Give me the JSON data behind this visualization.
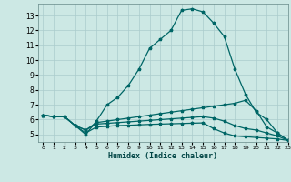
{
  "xlabel": "Humidex (Indice chaleur)",
  "bg_color": "#cce8e4",
  "grid_color": "#aacccc",
  "line_color": "#006666",
  "xlim": [
    -0.5,
    23
  ],
  "ylim": [
    4.5,
    13.8
  ],
  "xticks": [
    0,
    1,
    2,
    3,
    4,
    5,
    6,
    7,
    8,
    9,
    10,
    11,
    12,
    13,
    14,
    15,
    16,
    17,
    18,
    19,
    20,
    21,
    22,
    23
  ],
  "yticks": [
    5,
    6,
    7,
    8,
    9,
    10,
    11,
    12,
    13
  ],
  "lines": [
    {
      "x": [
        0,
        1,
        2,
        3,
        4,
        5,
        6,
        7,
        8,
        9,
        10,
        11,
        12,
        13,
        14,
        15,
        16,
        17,
        18,
        19,
        20,
        21,
        22,
        23
      ],
      "y": [
        6.3,
        6.2,
        6.2,
        5.6,
        5.0,
        5.9,
        7.0,
        7.5,
        8.3,
        9.4,
        10.8,
        11.4,
        12.0,
        13.35,
        13.45,
        13.25,
        12.5,
        11.6,
        9.4,
        7.7,
        6.5,
        6.0,
        5.1,
        4.6
      ]
    },
    {
      "x": [
        0,
        1,
        2,
        3,
        4,
        5,
        6,
        7,
        8,
        9,
        10,
        11,
        12,
        13,
        14,
        15,
        16,
        17,
        18,
        19,
        20,
        21,
        22,
        23
      ],
      "y": [
        6.3,
        6.2,
        6.2,
        5.6,
        5.3,
        5.8,
        5.9,
        6.0,
        6.1,
        6.2,
        6.3,
        6.4,
        6.5,
        6.6,
        6.7,
        6.8,
        6.9,
        7.0,
        7.1,
        7.3,
        6.6,
        5.5,
        5.1,
        4.6
      ]
    },
    {
      "x": [
        0,
        1,
        2,
        3,
        4,
        5,
        6,
        7,
        8,
        9,
        10,
        11,
        12,
        13,
        14,
        15,
        16,
        17,
        18,
        19,
        20,
        21,
        22,
        23
      ],
      "y": [
        6.3,
        6.2,
        6.2,
        5.6,
        5.3,
        5.7,
        5.75,
        5.8,
        5.85,
        5.9,
        5.95,
        6.0,
        6.05,
        6.1,
        6.15,
        6.2,
        6.1,
        5.9,
        5.6,
        5.4,
        5.3,
        5.1,
        4.9,
        4.6
      ]
    },
    {
      "x": [
        0,
        1,
        2,
        3,
        4,
        5,
        6,
        7,
        8,
        9,
        10,
        11,
        12,
        13,
        14,
        15,
        16,
        17,
        18,
        19,
        20,
        21,
        22,
        23
      ],
      "y": [
        6.3,
        6.2,
        6.2,
        5.6,
        5.1,
        5.5,
        5.55,
        5.6,
        5.62,
        5.65,
        5.68,
        5.7,
        5.72,
        5.74,
        5.76,
        5.78,
        5.4,
        5.1,
        4.9,
        4.85,
        4.8,
        4.75,
        4.7,
        4.6
      ]
    }
  ]
}
